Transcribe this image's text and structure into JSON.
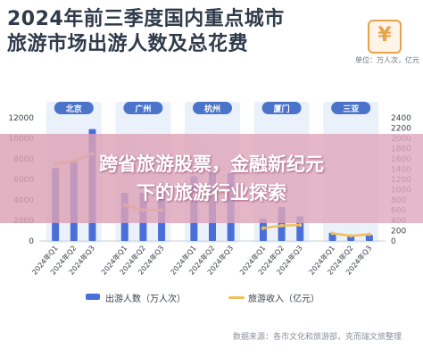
{
  "title": {
    "line1": "2024年前三季度国内重点城市",
    "line2": "旅游市场出游人数及总花费"
  },
  "logo_text": "¥",
  "unit_label": "单位：万人次，亿元",
  "banner": {
    "line1": "跨省旅游股票，金融新纪元",
    "line2": "下的旅游行业探索"
  },
  "legend": {
    "bar_label": "出游人数（万人次）",
    "line_label": "旅游收入（亿元）"
  },
  "source": "数据来源：各市文化和旅游部，克而瑞文旅整理",
  "colors": {
    "bar": "#4a6fd8",
    "line": "#f0c05a",
    "panel": "#eaf1fb",
    "city_tag": "#4a73c9"
  },
  "chart_data": {
    "type": "bar",
    "categories": [
      "2024年Q1",
      "2024年Q2",
      "2024年Q3"
    ],
    "groups": [
      "北京",
      "广州",
      "杭州",
      "厦门",
      "三亚"
    ],
    "left_axis": {
      "ticks": [
        0,
        2000,
        4000,
        6000,
        8000,
        10000,
        12000
      ],
      "ylim": [
        0,
        12000
      ]
    },
    "right_axis": {
      "ticks": [
        0,
        200,
        400,
        600,
        800,
        1000,
        1200,
        1400,
        1600,
        1800,
        2000,
        2200,
        2400
      ],
      "ylim": [
        0,
        2400
      ]
    },
    "series": [
      {
        "name": "出游人数（万人次）",
        "axis": "left",
        "values": [
          [
            7100,
            7700,
            10900
          ],
          [
            4700,
            4700,
            5000
          ],
          [
            6300,
            6700,
            6600
          ],
          [
            2200,
            3300,
            2400
          ],
          [
            800,
            500,
            600
          ]
        ]
      },
      {
        "name": "旅游收入（亿元）",
        "axis": "right",
        "values": [
          [
            1500,
            1560,
            1700
          ],
          [
            700,
            600,
            600
          ],
          [
            900,
            900,
            950
          ],
          [
            250,
            300,
            310
          ],
          [
            150,
            100,
            130
          ]
        ]
      }
    ]
  }
}
